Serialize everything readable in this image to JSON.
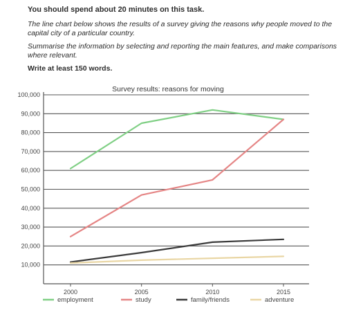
{
  "task": {
    "heading": "You should spend about 20 minutes on this task.",
    "description": "The line chart below shows the results of a survey giving the reasons why people moved to the capital city of a particular country.",
    "instruction": "Summarise the information by selecting and reporting the main features, and make comparisons where relevant.",
    "word_count": "Write at least 150 words."
  },
  "chart_data": {
    "type": "line",
    "title": "Survey results: reasons for moving",
    "xlabel": "",
    "ylabel": "",
    "x": [
      "2000",
      "2005",
      "2010",
      "2015"
    ],
    "ylim": [
      0,
      100000
    ],
    "yticks": [
      "10,000",
      "20,000",
      "30,000",
      "40,000",
      "50,000",
      "60,000",
      "70,000",
      "80,000",
      "90,000",
      "100,000"
    ],
    "grid": true,
    "legend_position": "bottom",
    "series": [
      {
        "name": "employment",
        "color": "#7fcf84",
        "values": [
          61000,
          85000,
          92000,
          87000
        ]
      },
      {
        "name": "study",
        "color": "#e58585",
        "values": [
          25000,
          47000,
          55000,
          87000
        ]
      },
      {
        "name": "family/friends",
        "color": "#3a3a3a",
        "values": [
          11500,
          16500,
          22000,
          23500
        ]
      },
      {
        "name": "adventure",
        "color": "#e9d6a4",
        "values": [
          11000,
          12500,
          13500,
          14500
        ]
      }
    ]
  }
}
